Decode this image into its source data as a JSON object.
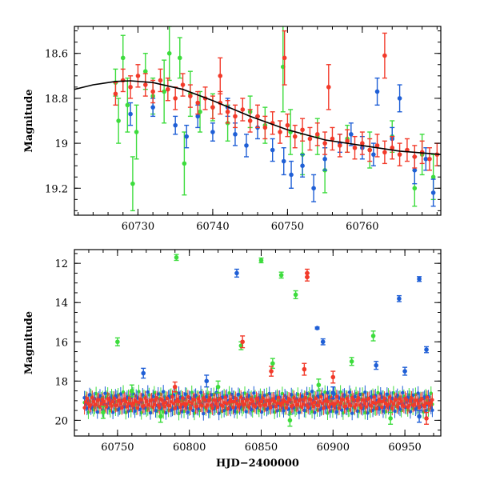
{
  "chart_data": [
    {
      "type": "scatter",
      "title": "",
      "xlabel": "",
      "ylabel": "Magnitude",
      "xlim": [
        60721.5,
        60770.5
      ],
      "ylim": [
        19.32,
        18.48
      ],
      "x_ticks": [
        60730,
        60740,
        60750,
        60760
      ],
      "y_ticks": [
        18.6,
        18.8,
        19,
        19.2
      ],
      "x_tick_labels": [
        "60730",
        "60740",
        "60750",
        "60760"
      ],
      "y_tick_labels": [
        "18.6",
        "18.8",
        "19",
        "19.2"
      ],
      "error_bars": true,
      "fit_curve": {
        "name": "model",
        "color": "#000000",
        "x": [
          60721.5,
          60724,
          60727,
          60729,
          60732,
          60736,
          60740,
          60745,
          60750,
          60755,
          60760,
          60765,
          60770.5
        ],
        "y": [
          18.76,
          18.74,
          18.725,
          18.722,
          18.73,
          18.76,
          18.81,
          18.88,
          18.94,
          18.985,
          19.01,
          19.035,
          19.05
        ]
      },
      "series": [
        {
          "name": "green",
          "color": "#3ddc3d",
          "points": [
            {
              "x": 60727.0,
              "y": 18.73,
              "e": 0.06
            },
            {
              "x": 60727.4,
              "y": 18.9,
              "e": 0.1
            },
            {
              "x": 60728.0,
              "y": 18.62,
              "e": 0.1
            },
            {
              "x": 60728.6,
              "y": 18.83,
              "e": 0.12
            },
            {
              "x": 60729.3,
              "y": 19.18,
              "e": 0.12
            },
            {
              "x": 60729.8,
              "y": 18.95,
              "e": 0.12
            },
            {
              "x": 60731.0,
              "y": 18.68,
              "e": 0.08
            },
            {
              "x": 60732.0,
              "y": 18.79,
              "e": 0.08
            },
            {
              "x": 60733.5,
              "y": 18.77,
              "e": 0.14
            },
            {
              "x": 60734.2,
              "y": 18.6,
              "e": 0.12
            },
            {
              "x": 60735.6,
              "y": 18.62,
              "e": 0.09
            },
            {
              "x": 60736.2,
              "y": 19.09,
              "e": 0.14
            },
            {
              "x": 60737.0,
              "y": 18.78,
              "e": 0.1
            },
            {
              "x": 60738.3,
              "y": 18.86,
              "e": 0.09
            },
            {
              "x": 60740.0,
              "y": 18.84,
              "e": 0.06
            },
            {
              "x": 60742.0,
              "y": 18.91,
              "e": 0.08
            },
            {
              "x": 60745.0,
              "y": 18.86,
              "e": 0.07
            },
            {
              "x": 60747.0,
              "y": 18.92,
              "e": 0.08
            },
            {
              "x": 60749.4,
              "y": 18.66,
              "e": 0.2
            },
            {
              "x": 60750.4,
              "y": 18.95,
              "e": 0.1
            },
            {
              "x": 60752.0,
              "y": 19.05,
              "e": 0.09
            },
            {
              "x": 60754.0,
              "y": 18.97,
              "e": 0.08
            },
            {
              "x": 60755.0,
              "y": 19.12,
              "e": 0.1
            },
            {
              "x": 60758.0,
              "y": 18.98,
              "e": 0.06
            },
            {
              "x": 60761.0,
              "y": 19.03,
              "e": 0.08
            },
            {
              "x": 60764.0,
              "y": 18.97,
              "e": 0.07
            },
            {
              "x": 60767.0,
              "y": 19.2,
              "e": 0.08
            },
            {
              "x": 60768.0,
              "y": 19.05,
              "e": 0.09
            },
            {
              "x": 60769.5,
              "y": 19.15,
              "e": 0.1
            }
          ]
        },
        {
          "name": "blue",
          "color": "#1f5fd6",
          "points": [
            {
              "x": 60729.0,
              "y": 18.87,
              "e": 0.05
            },
            {
              "x": 60732.0,
              "y": 18.84,
              "e": 0.04
            },
            {
              "x": 60735.0,
              "y": 18.92,
              "e": 0.04
            },
            {
              "x": 60736.5,
              "y": 18.97,
              "e": 0.05
            },
            {
              "x": 60738.0,
              "y": 18.88,
              "e": 0.05
            },
            {
              "x": 60740.0,
              "y": 18.95,
              "e": 0.04
            },
            {
              "x": 60742.0,
              "y": 18.84,
              "e": 0.04
            },
            {
              "x": 60743.0,
              "y": 18.96,
              "e": 0.05
            },
            {
              "x": 60744.5,
              "y": 19.01,
              "e": 0.05
            },
            {
              "x": 60746.0,
              "y": 18.93,
              "e": 0.05
            },
            {
              "x": 60748.0,
              "y": 19.03,
              "e": 0.05
            },
            {
              "x": 60749.5,
              "y": 19.08,
              "e": 0.06
            },
            {
              "x": 60750.5,
              "y": 19.14,
              "e": 0.06
            },
            {
              "x": 60752.0,
              "y": 19.1,
              "e": 0.05
            },
            {
              "x": 60753.5,
              "y": 19.2,
              "e": 0.06
            },
            {
              "x": 60755.0,
              "y": 19.07,
              "e": 0.05
            },
            {
              "x": 60757.0,
              "y": 19.0,
              "e": 0.04
            },
            {
              "x": 60758.5,
              "y": 18.96,
              "e": 0.05
            },
            {
              "x": 60760.0,
              "y": 19.02,
              "e": 0.05
            },
            {
              "x": 60761.5,
              "y": 19.05,
              "e": 0.05
            },
            {
              "x": 60762.0,
              "y": 18.77,
              "e": 0.06
            },
            {
              "x": 60764.0,
              "y": 18.98,
              "e": 0.05
            },
            {
              "x": 60765.0,
              "y": 18.8,
              "e": 0.06
            },
            {
              "x": 60767.0,
              "y": 19.12,
              "e": 0.06
            },
            {
              "x": 60768.5,
              "y": 19.07,
              "e": 0.05
            },
            {
              "x": 60769.5,
              "y": 19.22,
              "e": 0.06
            }
          ]
        },
        {
          "name": "red",
          "color": "#f23a2a",
          "points": [
            {
              "x": 60727.0,
              "y": 18.78,
              "e": 0.05
            },
            {
              "x": 60728.0,
              "y": 18.72,
              "e": 0.05
            },
            {
              "x": 60729.0,
              "y": 18.75,
              "e": 0.05
            },
            {
              "x": 60730.0,
              "y": 18.7,
              "e": 0.05
            },
            {
              "x": 60731.0,
              "y": 18.74,
              "e": 0.05
            },
            {
              "x": 60732.0,
              "y": 18.77,
              "e": 0.05
            },
            {
              "x": 60733.0,
              "y": 18.72,
              "e": 0.05
            },
            {
              "x": 60734.0,
              "y": 18.76,
              "e": 0.05
            },
            {
              "x": 60735.0,
              "y": 18.8,
              "e": 0.05
            },
            {
              "x": 60736.0,
              "y": 18.74,
              "e": 0.05
            },
            {
              "x": 60737.0,
              "y": 18.79,
              "e": 0.05
            },
            {
              "x": 60738.0,
              "y": 18.82,
              "e": 0.05
            },
            {
              "x": 60739.0,
              "y": 18.8,
              "e": 0.05
            },
            {
              "x": 60740.0,
              "y": 18.84,
              "e": 0.05
            },
            {
              "x": 60741.0,
              "y": 18.82,
              "e": 0.05
            },
            {
              "x": 60742.0,
              "y": 18.86,
              "e": 0.05
            },
            {
              "x": 60743.0,
              "y": 18.88,
              "e": 0.05
            },
            {
              "x": 60744.0,
              "y": 18.85,
              "e": 0.05
            },
            {
              "x": 60745.0,
              "y": 18.9,
              "e": 0.05
            },
            {
              "x": 60746.0,
              "y": 18.88,
              "e": 0.05
            },
            {
              "x": 60747.0,
              "y": 18.93,
              "e": 0.05
            },
            {
              "x": 60748.0,
              "y": 18.91,
              "e": 0.05
            },
            {
              "x": 60749.0,
              "y": 18.95,
              "e": 0.05
            },
            {
              "x": 60750.0,
              "y": 18.92,
              "e": 0.05
            },
            {
              "x": 60751.0,
              "y": 18.97,
              "e": 0.05
            },
            {
              "x": 60752.0,
              "y": 18.94,
              "e": 0.05
            },
            {
              "x": 60753.0,
              "y": 18.98,
              "e": 0.05
            },
            {
              "x": 60754.0,
              "y": 18.96,
              "e": 0.05
            },
            {
              "x": 60755.0,
              "y": 19.0,
              "e": 0.05
            },
            {
              "x": 60756.0,
              "y": 18.98,
              "e": 0.05
            },
            {
              "x": 60757.0,
              "y": 19.01,
              "e": 0.05
            },
            {
              "x": 60758.0,
              "y": 18.99,
              "e": 0.05
            },
            {
              "x": 60759.0,
              "y": 19.02,
              "e": 0.05
            },
            {
              "x": 60760.0,
              "y": 19.0,
              "e": 0.05
            },
            {
              "x": 60761.0,
              "y": 19.03,
              "e": 0.05
            },
            {
              "x": 60762.0,
              "y": 19.01,
              "e": 0.05
            },
            {
              "x": 60763.0,
              "y": 19.04,
              "e": 0.05
            },
            {
              "x": 60764.0,
              "y": 19.02,
              "e": 0.05
            },
            {
              "x": 60765.0,
              "y": 19.05,
              "e": 0.05
            },
            {
              "x": 60766.0,
              "y": 19.03,
              "e": 0.05
            },
            {
              "x": 60767.0,
              "y": 19.06,
              "e": 0.05
            },
            {
              "x": 60768.0,
              "y": 19.04,
              "e": 0.05
            },
            {
              "x": 60769.0,
              "y": 19.07,
              "e": 0.05
            },
            {
              "x": 60770.0,
              "y": 19.05,
              "e": 0.05
            },
            {
              "x": 60749.6,
              "y": 18.62,
              "e": 0.12
            },
            {
              "x": 60755.5,
              "y": 18.75,
              "e": 0.1
            },
            {
              "x": 60763.0,
              "y": 18.61,
              "e": 0.1
            },
            {
              "x": 60741.0,
              "y": 18.7,
              "e": 0.08
            }
          ]
        }
      ]
    },
    {
      "type": "scatter",
      "title": "",
      "xlabel": "HJD−2400000",
      "ylabel": "Magnitude",
      "xlim": [
        60720,
        60975
      ],
      "ylim": [
        20.8,
        11.3
      ],
      "x_ticks": [
        60750,
        60800,
        60850,
        60900,
        60950
      ],
      "y_ticks": [
        12,
        14,
        16,
        18,
        20
      ],
      "x_tick_labels": [
        "60750",
        "60800",
        "60850",
        "60900",
        "60950"
      ],
      "y_tick_labels": [
        "12",
        "14",
        "16",
        "18",
        "20"
      ],
      "error_bars": true,
      "band": {
        "x_start": 60727,
        "x_end": 60970,
        "y_center": 19.1,
        "half_width": 0.45
      },
      "series": [
        {
          "name": "green",
          "color": "#3ddc3d",
          "points": [
            {
              "x": 60791,
              "y": 11.7,
              "e": 0.15
            },
            {
              "x": 60850,
              "y": 11.85,
              "e": 0.12
            },
            {
              "x": 60864,
              "y": 12.6,
              "e": 0.15
            },
            {
              "x": 60874,
              "y": 13.6,
              "e": 0.2
            },
            {
              "x": 60750,
              "y": 16.0,
              "e": 0.2
            },
            {
              "x": 60836,
              "y": 16.2,
              "e": 0.2
            },
            {
              "x": 60928,
              "y": 15.7,
              "e": 0.25
            },
            {
              "x": 60913,
              "y": 17.0,
              "e": 0.2
            },
            {
              "x": 60858,
              "y": 17.1,
              "e": 0.25
            },
            {
              "x": 60760,
              "y": 18.5,
              "e": 0.3
            },
            {
              "x": 60820,
              "y": 18.3,
              "e": 0.3
            },
            {
              "x": 60890,
              "y": 18.2,
              "e": 0.3
            },
            {
              "x": 60740,
              "y": 19.6,
              "e": 0.3
            },
            {
              "x": 60780,
              "y": 19.8,
              "e": 0.3
            },
            {
              "x": 60870,
              "y": 20.0,
              "e": 0.3
            },
            {
              "x": 60940,
              "y": 19.9,
              "e": 0.3
            }
          ]
        },
        {
          "name": "blue",
          "color": "#1f5fd6",
          "points": [
            {
              "x": 60833,
              "y": 12.5,
              "e": 0.2
            },
            {
              "x": 60960,
              "y": 12.8,
              "e": 0.12
            },
            {
              "x": 60946,
              "y": 13.8,
              "e": 0.15
            },
            {
              "x": 60965,
              "y": 16.4,
              "e": 0.15
            },
            {
              "x": 60889,
              "y": 15.3,
              "e": 0.05
            },
            {
              "x": 60893,
              "y": 16.0,
              "e": 0.15
            },
            {
              "x": 60930,
              "y": 17.2,
              "e": 0.2
            },
            {
              "x": 60950,
              "y": 17.5,
              "e": 0.2
            },
            {
              "x": 60768,
              "y": 17.6,
              "e": 0.25
            },
            {
              "x": 60812,
              "y": 18.0,
              "e": 0.3
            },
            {
              "x": 60900,
              "y": 18.6,
              "e": 0.3
            },
            {
              "x": 60960,
              "y": 19.8,
              "e": 0.3
            }
          ]
        },
        {
          "name": "red",
          "color": "#f23a2a",
          "points": [
            {
              "x": 60882,
              "y": 12.5,
              "e": 0.2
            },
            {
              "x": 60882,
              "y": 12.7,
              "e": 0.2
            },
            {
              "x": 60837,
              "y": 16.0,
              "e": 0.3
            },
            {
              "x": 60857,
              "y": 17.5,
              "e": 0.25
            },
            {
              "x": 60880,
              "y": 17.4,
              "e": 0.3
            },
            {
              "x": 60790,
              "y": 18.3,
              "e": 0.25
            },
            {
              "x": 60900,
              "y": 17.8,
              "e": 0.3
            },
            {
              "x": 60965,
              "y": 19.9,
              "e": 0.3
            }
          ]
        }
      ]
    }
  ]
}
